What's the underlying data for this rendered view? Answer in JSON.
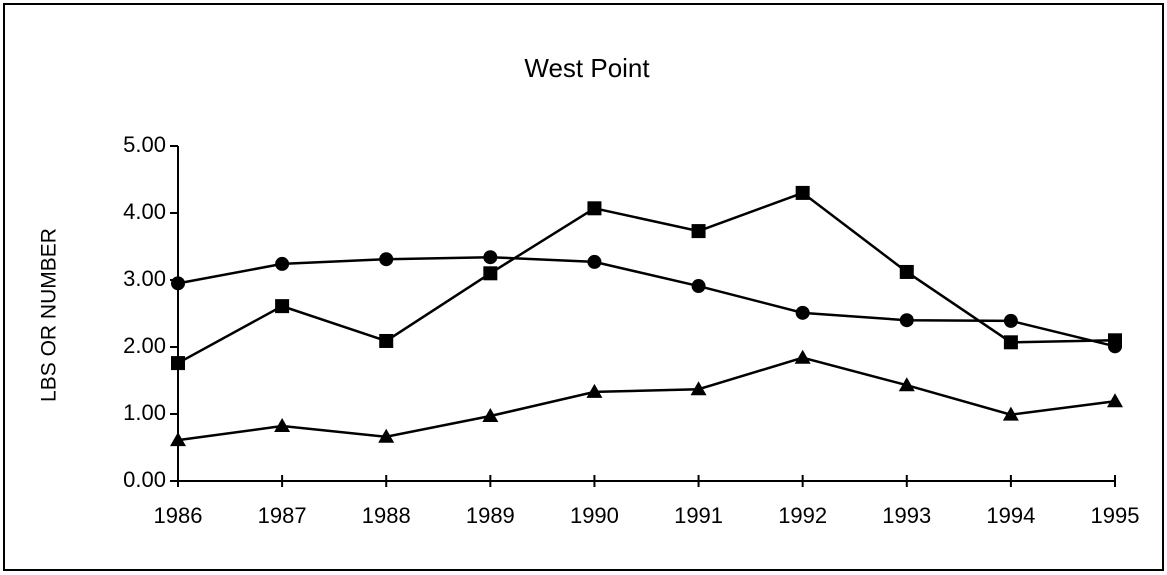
{
  "chart_data": {
    "type": "line",
    "title": "West Point",
    "y_label": "LBS OR NUMBER",
    "categories": [
      "1986",
      "1987",
      "1988",
      "1989",
      "1990",
      "1991",
      "1992",
      "1993",
      "1994",
      "1995"
    ],
    "series": [
      {
        "color": "#000000",
        "marker": "circle",
        "values": [
          2.95,
          3.24,
          3.31,
          3.34,
          3.27,
          2.91,
          2.51,
          2.4,
          2.39,
          2.01
        ]
      },
      {
        "color": "#000000",
        "marker": "square",
        "values": [
          1.76,
          2.61,
          2.09,
          3.1,
          4.07,
          3.73,
          4.3,
          3.12,
          2.07,
          2.1
        ]
      },
      {
        "color": "#000000",
        "marker": "triangle",
        "values": [
          0.61,
          0.82,
          0.66,
          0.97,
          1.33,
          1.37,
          1.84,
          1.43,
          0.99,
          1.19
        ]
      }
    ],
    "ylim": [
      0,
      5
    ],
    "yticks": [
      {
        "value": 0,
        "label": "0.00"
      },
      {
        "value": 1,
        "label": "1.00"
      },
      {
        "value": 2,
        "label": "2.00"
      },
      {
        "value": 3,
        "label": "3.00"
      },
      {
        "value": 4,
        "label": "4.00"
      },
      {
        "value": 5,
        "label": "5.00"
      }
    ],
    "grid": false
  }
}
